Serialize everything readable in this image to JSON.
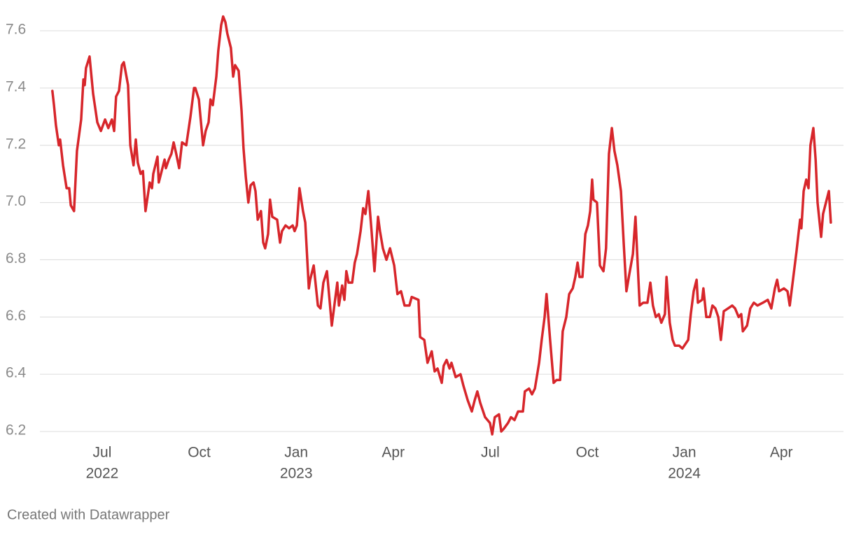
{
  "chart_data": {
    "type": "line",
    "color": "#d7262b",
    "grid": true,
    "ylim": [
      6.2,
      7.6
    ],
    "yticks": [
      6.2,
      6.4,
      6.6,
      6.8,
      {
        "value": 7,
        "label": "7.0"
      },
      7.2,
      7.4,
      7.6
    ],
    "xlim": [
      4.2,
      29.0
    ],
    "xticks": [
      {
        "value": 6,
        "label": "Jul"
      },
      {
        "value": 9,
        "label": "Oct"
      },
      {
        "value": 12,
        "label": "Jan"
      },
      {
        "value": 15,
        "label": "Apr"
      },
      {
        "value": 18,
        "label": "Jul"
      },
      {
        "value": 21,
        "label": "Oct"
      },
      {
        "value": 24,
        "label": "Jan"
      },
      {
        "value": 27,
        "label": "Apr"
      }
    ],
    "x_year_labels": [
      {
        "value": 6,
        "label": "2022"
      },
      {
        "value": 12,
        "label": "2023"
      },
      {
        "value": 24,
        "label": "2024"
      }
    ],
    "x": [
      4.46,
      4.51,
      4.57,
      4.66,
      4.7,
      4.79,
      4.9,
      4.98,
      5.03,
      5.13,
      5.22,
      5.35,
      5.42,
      5.46,
      5.5,
      5.61,
      5.72,
      5.85,
      5.96,
      6.09,
      6.19,
      6.3,
      6.37,
      6.43,
      6.52,
      6.61,
      6.67,
      6.8,
      6.87,
      6.97,
      7.04,
      7.1,
      7.19,
      7.26,
      7.34,
      7.47,
      7.54,
      7.58,
      7.71,
      7.75,
      7.84,
      7.93,
      7.97,
      8.06,
      8.14,
      8.21,
      8.29,
      8.38,
      8.47,
      8.6,
      8.73,
      8.84,
      8.88,
      8.99,
      9.12,
      9.2,
      9.29,
      9.35,
      9.42,
      9.53,
      9.59,
      9.68,
      9.74,
      9.81,
      9.87,
      9.98,
      10.05,
      10.11,
      10.22,
      10.31,
      10.37,
      10.44,
      10.52,
      10.59,
      10.68,
      10.74,
      10.81,
      10.91,
      10.98,
      11.04,
      11.13,
      11.19,
      11.26,
      11.41,
      11.5,
      11.56,
      11.67,
      11.78,
      11.89,
      11.95,
      12.02,
      12.1,
      12.21,
      12.28,
      12.39,
      12.43,
      12.54,
      12.67,
      12.75,
      12.84,
      12.95,
      13.03,
      13.1,
      13.19,
      13.27,
      13.32,
      13.42,
      13.49,
      13.55,
      13.62,
      13.73,
      13.81,
      13.88,
      13.99,
      14.07,
      14.14,
      14.23,
      14.33,
      14.42,
      14.53,
      14.59,
      14.68,
      14.79,
      14.9,
      15.03,
      15.13,
      15.24,
      15.35,
      15.5,
      15.57,
      15.78,
      15.83,
      15.96,
      16.06,
      16.19,
      16.28,
      16.37,
      16.5,
      16.56,
      16.65,
      16.74,
      16.8,
      16.93,
      17.08,
      17.17,
      17.3,
      17.43,
      17.52,
      17.6,
      17.69,
      17.84,
      17.99,
      18.06,
      18.14,
      18.27,
      18.34,
      18.42,
      18.55,
      18.64,
      18.75,
      18.86,
      19.01,
      19.07,
      19.2,
      19.29,
      19.38,
      19.51,
      19.59,
      19.68,
      19.74,
      19.85,
      19.96,
      20.05,
      20.16,
      20.24,
      20.35,
      20.44,
      20.55,
      20.63,
      20.7,
      20.76,
      20.85,
      20.94,
      21.02,
      21.09,
      21.15,
      21.19,
      21.3,
      21.39,
      21.5,
      21.58,
      21.67,
      21.76,
      21.84,
      21.93,
      22.04,
      22.13,
      22.21,
      22.3,
      22.41,
      22.49,
      22.56,
      22.62,
      22.73,
      22.86,
      22.95,
      23.03,
      23.12,
      23.21,
      23.29,
      23.4,
      23.45,
      23.55,
      23.64,
      23.71,
      23.84,
      23.94,
      24.12,
      24.2,
      24.29,
      24.38,
      24.42,
      24.55,
      24.59,
      24.68,
      24.79,
      24.87,
      24.96,
      25.05,
      25.13,
      25.22,
      25.35,
      25.48,
      25.57,
      25.68,
      25.76,
      25.81,
      25.94,
      26.04,
      26.15,
      26.26,
      26.43,
      26.58,
      26.69,
      26.8,
      26.87,
      26.93,
      27.08,
      27.19,
      27.26,
      27.36,
      27.47,
      27.58,
      27.62,
      27.69,
      27.77,
      27.84,
      27.9,
      27.99,
      28.06,
      28.12,
      28.23,
      28.29,
      28.38,
      28.47,
      28.53
    ],
    "values": [
      7.39,
      7.34,
      7.27,
      7.2,
      7.22,
      7.13,
      7.05,
      7.05,
      6.99,
      6.97,
      7.18,
      7.29,
      7.43,
      7.41,
      7.47,
      7.51,
      7.38,
      7.28,
      7.25,
      7.29,
      7.26,
      7.29,
      7.25,
      7.37,
      7.39,
      7.48,
      7.49,
      7.41,
      7.2,
      7.13,
      7.22,
      7.14,
      7.1,
      7.11,
      6.97,
      7.07,
      7.05,
      7.1,
      7.16,
      7.07,
      7.11,
      7.15,
      7.12,
      7.15,
      7.17,
      7.21,
      7.17,
      7.12,
      7.21,
      7.2,
      7.3,
      7.4,
      7.4,
      7.36,
      7.2,
      7.25,
      7.28,
      7.36,
      7.34,
      7.44,
      7.53,
      7.62,
      7.65,
      7.63,
      7.59,
      7.54,
      7.44,
      7.48,
      7.46,
      7.32,
      7.19,
      7.09,
      7.0,
      7.06,
      7.07,
      7.04,
      6.94,
      6.97,
      6.86,
      6.84,
      6.89,
      7.01,
      6.95,
      6.94,
      6.86,
      6.9,
      6.92,
      6.91,
      6.92,
      6.9,
      6.92,
      7.05,
      6.97,
      6.93,
      6.7,
      6.73,
      6.78,
      6.64,
      6.63,
      6.72,
      6.76,
      6.66,
      6.57,
      6.65,
      6.72,
      6.64,
      6.71,
      6.66,
      6.76,
      6.72,
      6.72,
      6.79,
      6.82,
      6.9,
      6.98,
      6.96,
      7.04,
      6.9,
      6.76,
      6.95,
      6.9,
      6.84,
      6.8,
      6.84,
      6.78,
      6.68,
      6.69,
      6.64,
      6.64,
      6.67,
      6.66,
      6.53,
      6.52,
      6.44,
      6.48,
      6.41,
      6.42,
      6.37,
      6.43,
      6.45,
      6.42,
      6.44,
      6.39,
      6.4,
      6.36,
      6.31,
      6.27,
      6.31,
      6.34,
      6.3,
      6.25,
      6.23,
      6.19,
      6.25,
      6.26,
      6.2,
      6.21,
      6.23,
      6.25,
      6.24,
      6.27,
      6.27,
      6.34,
      6.35,
      6.33,
      6.35,
      6.44,
      6.52,
      6.6,
      6.68,
      6.52,
      6.37,
      6.38,
      6.38,
      6.55,
      6.6,
      6.68,
      6.7,
      6.74,
      6.79,
      6.74,
      6.74,
      6.89,
      6.92,
      6.97,
      7.08,
      7.01,
      7.0,
      6.78,
      6.76,
      6.84,
      7.17,
      7.26,
      7.18,
      7.13,
      7.04,
      6.85,
      6.69,
      6.75,
      6.82,
      6.95,
      6.78,
      6.64,
      6.65,
      6.65,
      6.72,
      6.64,
      6.6,
      6.61,
      6.58,
      6.61,
      6.74,
      6.58,
      6.52,
      6.5,
      6.5,
      6.49,
      6.52,
      6.61,
      6.69,
      6.73,
      6.65,
      6.66,
      6.7,
      6.6,
      6.6,
      6.64,
      6.63,
      6.6,
      6.52,
      6.62,
      6.63,
      6.64,
      6.63,
      6.6,
      6.61,
      6.55,
      6.57,
      6.63,
      6.65,
      6.64,
      6.65,
      6.66,
      6.63,
      6.7,
      6.73,
      6.69,
      6.7,
      6.69,
      6.64,
      6.73,
      6.83,
      6.94,
      6.91,
      7.04,
      7.08,
      7.05,
      7.2,
      7.26,
      7.15,
      7.0,
      6.88,
      6.96,
      7.0,
      7.04,
      6.93
    ],
    "footer": "Created with Datawrapper"
  }
}
